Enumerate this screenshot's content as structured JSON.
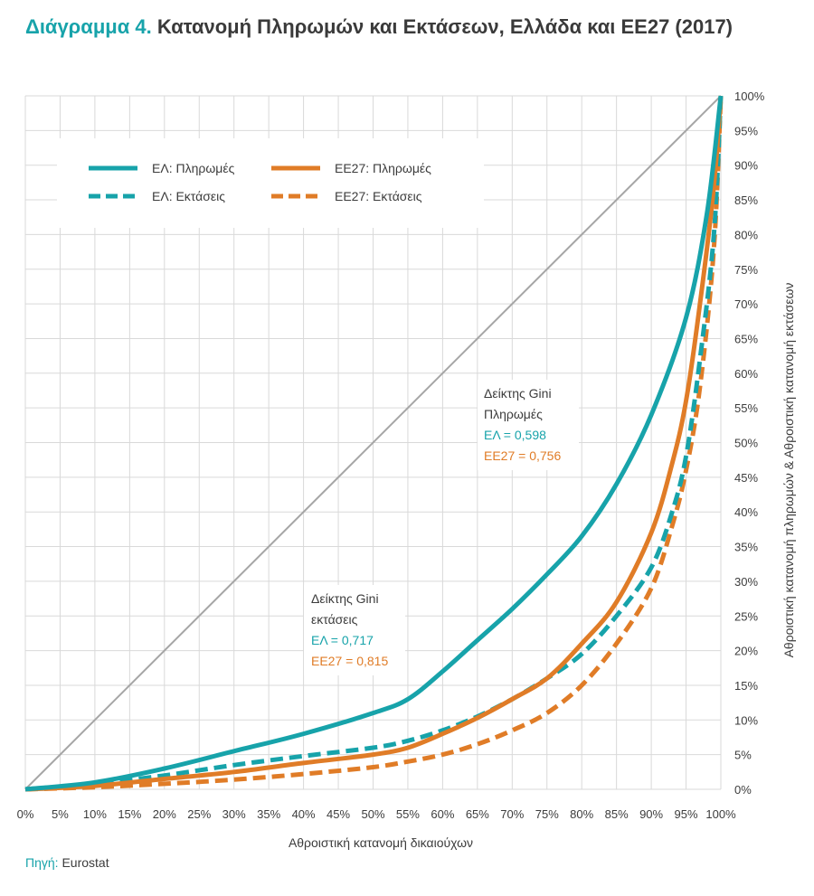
{
  "title": {
    "prefix": "Διάγραμμα 4.",
    "text": "Κατανομή Πληρωμών και Εκτάσεων, Ελλάδα και ΕΕ27 (2017)"
  },
  "source": {
    "label": "Πηγή:",
    "value": "Eurostat"
  },
  "colors": {
    "teal": "#17a3aa",
    "orange": "#e07c27",
    "diagonal": "#a6a6a6",
    "grid": "#d9d9d9",
    "text": "#3c3c3c"
  },
  "chart_data": {
    "type": "line",
    "xlabel": "Αθροιστική κατανομή δικαιούχων",
    "ylabel": "Αθροιστική κατανομή πληρωμών & Αθροιστική κατανομή εκτάσεων",
    "xlim": [
      0,
      100
    ],
    "ylim": [
      0,
      100
    ],
    "grid": true,
    "y_axis_side": "right",
    "legend_position": "top-left",
    "x_ticks": [
      "0%",
      "5%",
      "10%",
      "15%",
      "20%",
      "25%",
      "30%",
      "35%",
      "40%",
      "45%",
      "50%",
      "55%",
      "60%",
      "65%",
      "70%",
      "75%",
      "80%",
      "85%",
      "90%",
      "95%",
      "100%"
    ],
    "y_ticks": [
      "0%",
      "5%",
      "10%",
      "15%",
      "20%",
      "25%",
      "30%",
      "35%",
      "40%",
      "45%",
      "50%",
      "55%",
      "60%",
      "65%",
      "70%",
      "75%",
      "80%",
      "85%",
      "90%",
      "95%",
      "100%"
    ],
    "series": [
      {
        "name": "ΕΛ: Πληρωμές",
        "color": "#17a3aa",
        "style": "solid",
        "x": [
          0,
          10,
          20,
          30,
          40,
          50,
          55,
          60,
          65,
          70,
          75,
          80,
          85,
          90,
          95,
          98,
          100
        ],
        "y": [
          0,
          1,
          3,
          5.5,
          8,
          11,
          13,
          17,
          21.5,
          26,
          31,
          36.5,
          44,
          54,
          68,
          83,
          100
        ]
      },
      {
        "name": "ΕΕ27: Πληρωμές",
        "color": "#e07c27",
        "style": "solid",
        "x": [
          0,
          10,
          20,
          30,
          40,
          50,
          55,
          60,
          65,
          70,
          75,
          80,
          85,
          90,
          93,
          95,
          97,
          99,
          100
        ],
        "y": [
          0,
          0.5,
          1.5,
          2.5,
          3.8,
          5,
          6,
          8,
          10.3,
          13,
          16,
          21,
          27,
          37,
          47,
          56,
          70,
          87,
          100
        ]
      },
      {
        "name": "ΕΛ: Εκτάσεις",
        "color": "#17a3aa",
        "style": "dashed",
        "x": [
          0,
          10,
          20,
          30,
          40,
          50,
          55,
          60,
          65,
          70,
          75,
          80,
          85,
          90,
          93,
          95,
          97,
          99,
          100
        ],
        "y": [
          0,
          0.8,
          2,
          3.5,
          4.8,
          6,
          7,
          8.5,
          10.5,
          13,
          16,
          19.5,
          25,
          32,
          40,
          48,
          62,
          80,
          100
        ]
      },
      {
        "name": "ΕΕ27: Εκτάσεις",
        "color": "#e07c27",
        "style": "dashed",
        "x": [
          0,
          10,
          20,
          30,
          40,
          50,
          55,
          60,
          65,
          70,
          75,
          80,
          85,
          90,
          93,
          95,
          97,
          99,
          100
        ],
        "y": [
          0,
          0.3,
          0.8,
          1.4,
          2.2,
          3.2,
          4,
          5,
          6.5,
          8.5,
          11,
          15,
          21,
          29,
          38,
          46,
          58,
          78,
          100
        ]
      },
      {
        "name": "Ισότητα",
        "color": "#a6a6a6",
        "style": "solid",
        "x": [
          0,
          100
        ],
        "y": [
          0,
          100
        ]
      }
    ],
    "legend": [
      {
        "label": "ΕΛ: Πληρωμές",
        "color": "#17a3aa",
        "style": "solid"
      },
      {
        "label": "ΕΕ27: Πληρωμές",
        "color": "#e07c27",
        "style": "solid"
      },
      {
        "label": "ΕΛ: Εκτάσεις",
        "color": "#17a3aa",
        "style": "dashed"
      },
      {
        "label": "ΕΕ27: Εκτάσεις",
        "color": "#e07c27",
        "style": "dashed"
      }
    ],
    "annotations": {
      "gini_payments": {
        "heading1": "Δείκτης Gini",
        "heading2": "Πληρωμές",
        "el": "ΕΛ = 0,598",
        "eu": "ΕΕ27 = 0,756"
      },
      "gini_area": {
        "heading1": "Δείκτης Gini",
        "heading2": "εκτάσεις",
        "el": "ΕΛ = 0,717",
        "eu": "ΕΕ27 = 0,815"
      }
    }
  }
}
